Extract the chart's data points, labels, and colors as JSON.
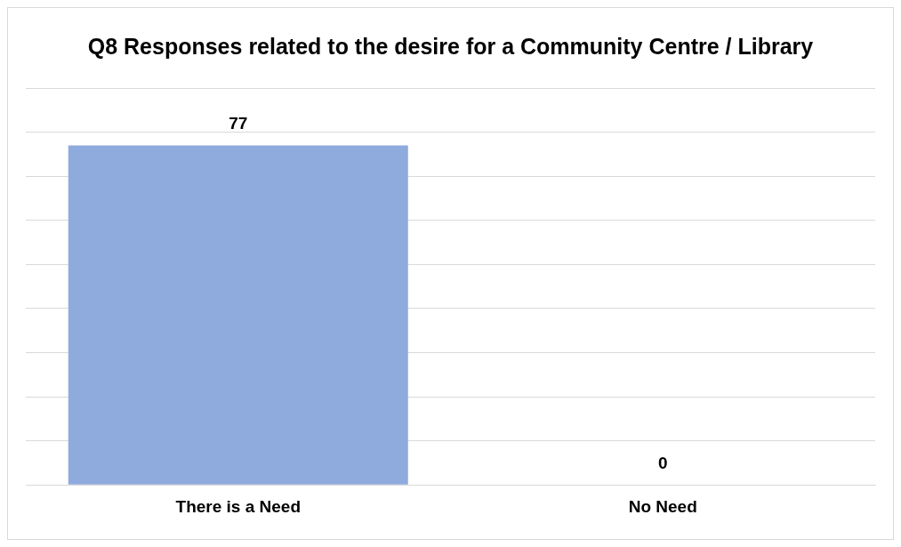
{
  "chart_data": {
    "type": "bar",
    "title": "Q8 Responses related to the desire for a Community Centre / Library",
    "categories": [
      "There is a Need",
      "No Need"
    ],
    "values": [
      77,
      0
    ],
    "color": "#8faadc",
    "ylim": [
      0,
      90
    ],
    "yticks": [
      {
        "value": 0,
        "label": null
      },
      {
        "value": 10,
        "label": null
      },
      {
        "value": 20,
        "label": null
      },
      {
        "value": 30,
        "label": null
      },
      {
        "value": 40,
        "label": null
      },
      {
        "value": 50,
        "label": null
      },
      {
        "value": 60,
        "label": null
      },
      {
        "value": 70,
        "label": null
      },
      {
        "value": 80,
        "label": null
      },
      {
        "value": 90,
        "label": null
      }
    ],
    "grid": "y",
    "tick_labels": "x",
    "data_labels": true,
    "legend": false
  }
}
